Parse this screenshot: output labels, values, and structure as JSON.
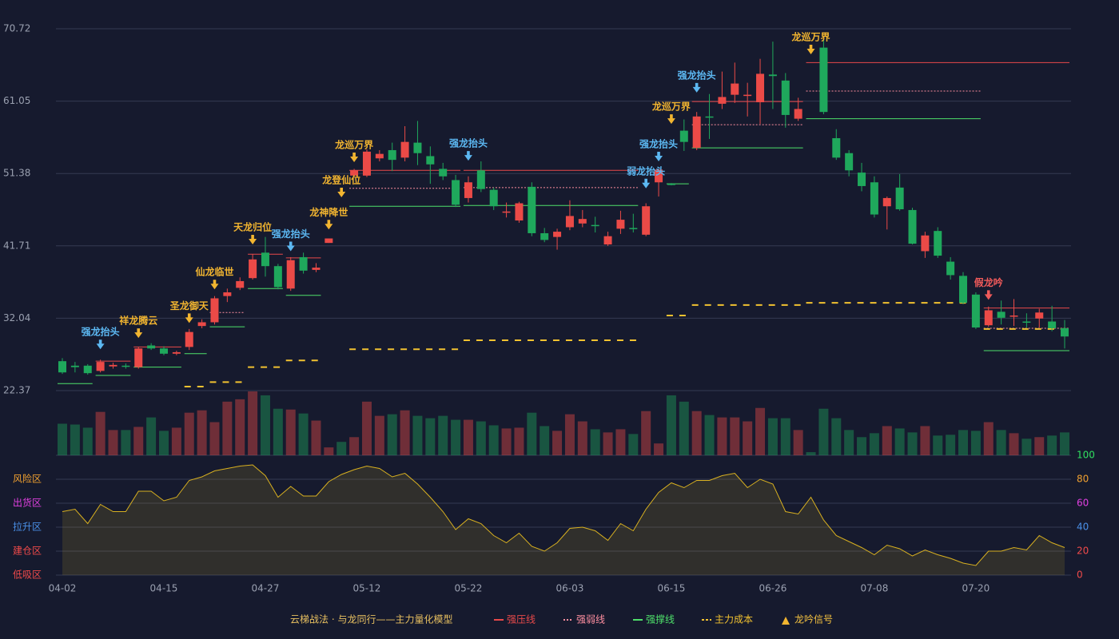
{
  "chart_data": {
    "type": "candlestick",
    "categories": [
      "04-02",
      null,
      null,
      null,
      null,
      null,
      null,
      null,
      "04-15",
      null,
      null,
      null,
      null,
      null,
      null,
      null,
      "04-27",
      null,
      null,
      null,
      null,
      null,
      null,
      null,
      "05-12",
      null,
      null,
      null,
      null,
      null,
      null,
      null,
      "05-22",
      null,
      null,
      null,
      null,
      null,
      null,
      null,
      "06-03",
      null,
      null,
      null,
      null,
      null,
      null,
      null,
      "06-15",
      null,
      null,
      null,
      null,
      null,
      null,
      null,
      "06-26",
      null,
      null,
      null,
      null,
      null,
      null,
      null,
      "07-08",
      null,
      null,
      null,
      null,
      null,
      null,
      null,
      "07-20",
      null,
      null,
      null,
      null,
      null,
      null,
      null
    ],
    "open": [
      26.3,
      25.7,
      25.7,
      25.0,
      25.6,
      25.7,
      25.5,
      28.4,
      28.0,
      27.3,
      28.2,
      31.0,
      31.5,
      35.0,
      36.1,
      37.4,
      40.8,
      39.0,
      36.0,
      40.2,
      38.5,
      42.1,
      null,
      51.1,
      51.1,
      53.4,
      54.5,
      53.5,
      55.5,
      53.7,
      52.0,
      50.5,
      48.1,
      51.8,
      49.2,
      46.2,
      45.1,
      49.6,
      43.4,
      42.9,
      44.2,
      44.7,
      44.5,
      41.9,
      44.0,
      44.1,
      43.2,
      50.2,
      50.0,
      57.1,
      54.8,
      59.0,
      60.7,
      61.9,
      61.8,
      60.9,
      64.6,
      63.8,
      58.7,
      null,
      68.2,
      56.1,
      54.1,
      51.5,
      50.2,
      47.0,
      49.5,
      46.5,
      41.0,
      43.7,
      39.6,
      37.7,
      35.2,
      31.1,
      32.9,
      32.4,
      31.6,
      32.0,
      31.6,
      30.7
    ],
    "high": [
      26.7,
      26.2,
      25.9,
      26.5,
      26.1,
      26.0,
      28.2,
      28.7,
      28.3,
      27.7,
      30.6,
      31.9,
      35.0,
      36.0,
      37.5,
      40.6,
      42.9,
      39.3,
      40.2,
      40.8,
      39.4,
      42.7,
      null,
      52.0,
      54.6,
      54.5,
      55.5,
      57.7,
      58.4,
      55.0,
      52.8,
      51.2,
      51.0,
      53.0,
      49.5,
      47.5,
      47.6,
      50.2,
      44.1,
      44.0,
      47.8,
      46.5,
      45.6,
      43.6,
      46.4,
      46.0,
      47.4,
      52.0,
      50.1,
      58.6,
      59.6,
      62.0,
      65.0,
      66.2,
      63.5,
      66.7,
      69.0,
      64.8,
      61.5,
      null,
      69.3,
      57.3,
      54.5,
      52.8,
      51.0,
      48.3,
      51.3,
      46.8,
      43.6,
      44.2,
      40.2,
      38.2,
      35.5,
      33.6,
      34.4,
      34.6,
      32.7,
      33.3,
      33.7,
      31.8
    ],
    "low": [
      24.6,
      24.8,
      24.5,
      24.8,
      25.3,
      25.3,
      25.3,
      27.8,
      27.1,
      27.1,
      27.8,
      30.7,
      31.2,
      34.2,
      35.8,
      37.2,
      37.6,
      35.9,
      35.7,
      38.0,
      38.2,
      42.1,
      null,
      50.9,
      50.9,
      53.0,
      51.7,
      53.0,
      52.5,
      50.0,
      50.5,
      46.9,
      47.5,
      48.9,
      46.5,
      45.5,
      44.8,
      43.0,
      42.2,
      41.2,
      43.8,
      44.2,
      43.5,
      41.7,
      43.3,
      43.5,
      43.0,
      48.3,
      49.8,
      54.4,
      54.5,
      56.0,
      60.0,
      60.8,
      59.0,
      58.0,
      60.0,
      57.5,
      58.4,
      null,
      59.3,
      53.2,
      51.0,
      49.0,
      45.5,
      43.9,
      46.4,
      41.9,
      40.1,
      40.1,
      37.2,
      33.9,
      30.6,
      30.9,
      31.2,
      31.0,
      30.8,
      30.8,
      30.3,
      28.0
    ],
    "close": [
      24.8,
      25.5,
      24.7,
      26.2,
      25.8,
      25.6,
      28.0,
      28.0,
      27.3,
      27.5,
      30.2,
      31.5,
      34.7,
      35.5,
      37.0,
      39.9,
      39.0,
      36.2,
      39.8,
      38.4,
      38.8,
      42.7,
      null,
      51.8,
      54.3,
      54.0,
      53.2,
      55.6,
      54.1,
      52.6,
      51.0,
      47.2,
      50.2,
      49.3,
      47.0,
      46.3,
      47.4,
      43.4,
      42.5,
      43.6,
      45.7,
      45.3,
      44.4,
      43.0,
      45.2,
      44.0,
      47.0,
      51.9,
      49.9,
      55.6,
      59.0,
      58.9,
      61.6,
      63.4,
      61.9,
      64.7,
      64.4,
      59.2,
      60.0,
      null,
      59.6,
      53.5,
      51.8,
      49.7,
      45.9,
      48.1,
      46.6,
      42.0,
      43.1,
      40.4,
      37.8,
      34.1,
      30.8,
      33.1,
      32.1,
      32.4,
      31.5,
      32.8,
      30.7,
      29.6
    ],
    "volume": [
      40,
      39,
      35,
      55,
      32,
      32,
      36,
      48,
      31,
      35,
      54,
      57,
      42,
      68,
      71,
      81,
      76,
      59,
      58,
      53,
      44,
      10,
      17,
      23,
      68,
      50,
      52,
      57,
      50,
      47,
      50,
      45,
      45,
      43,
      38,
      34,
      35,
      54,
      37,
      31,
      52,
      43,
      33,
      29,
      33,
      27,
      56,
      15,
      76,
      68,
      56,
      51,
      48,
      48,
      43,
      60,
      47,
      47,
      32,
      4,
      59,
      47,
      32,
      23,
      28,
      37,
      34,
      29,
      37,
      25,
      26,
      32,
      31,
      42,
      32,
      28,
      21,
      23,
      25,
      29
    ],
    "up_color": "#eb4a47",
    "down_color": "#1fa85c",
    "ylim": [
      22.37,
      70.72
    ],
    "yticks": [
      22.37,
      32.04,
      41.71,
      51.38,
      61.05,
      70.72
    ],
    "grid": true,
    "levels": [
      {
        "kind": "pressure",
        "from": 3,
        "to": 5,
        "value": 26.3
      },
      {
        "kind": "pressure",
        "from": 6,
        "to": 9,
        "value": 28.2
      },
      {
        "kind": "pressure",
        "from": 15,
        "to": 17,
        "value": 40.6
      },
      {
        "kind": "pressure",
        "from": 18,
        "to": 20,
        "value": 40.1
      },
      {
        "kind": "pressure",
        "from": 23,
        "to": 31,
        "value": 51.8
      },
      {
        "kind": "pressure",
        "from": 32,
        "to": 45,
        "value": 51.8
      },
      {
        "kind": "pressure",
        "from": 50,
        "to": 58,
        "value": 61.0
      },
      {
        "kind": "pressure",
        "from": 59,
        "to": 79,
        "value": 66.2
      },
      {
        "kind": "pressure",
        "from": 73,
        "to": 79,
        "value": 33.4
      },
      {
        "kind": "weak",
        "from": 12,
        "to": 14,
        "value": 32.8
      },
      {
        "kind": "weak",
        "from": 23,
        "to": 31,
        "value": 49.4
      },
      {
        "kind": "weak",
        "from": 32,
        "to": 45,
        "value": 49.5
      },
      {
        "kind": "weak",
        "from": 50,
        "to": 58,
        "value": 57.9
      },
      {
        "kind": "weak",
        "from": 59,
        "to": 72,
        "value": 62.4
      },
      {
        "kind": "weak",
        "from": 73,
        "to": 79,
        "value": 30.7
      },
      {
        "kind": "support",
        "from": 0,
        "to": 2,
        "value": 23.3
      },
      {
        "kind": "support",
        "from": 3,
        "to": 5,
        "value": 24.4
      },
      {
        "kind": "support",
        "from": 6,
        "to": 9,
        "value": 25.5
      },
      {
        "kind": "support",
        "from": 10,
        "to": 11,
        "value": 27.3
      },
      {
        "kind": "support",
        "from": 12,
        "to": 14,
        "value": 30.9
      },
      {
        "kind": "support",
        "from": 15,
        "to": 17,
        "value": 36.0
      },
      {
        "kind": "support",
        "from": 18,
        "to": 20,
        "value": 35.1
      },
      {
        "kind": "support",
        "from": 23,
        "to": 31,
        "value": 47.0
      },
      {
        "kind": "support",
        "from": 32,
        "to": 45,
        "value": 47.1
      },
      {
        "kind": "support",
        "from": 48,
        "to": 49,
        "value": 50.0
      },
      {
        "kind": "support",
        "from": 50,
        "to": 58,
        "value": 54.8
      },
      {
        "kind": "support",
        "from": 59,
        "to": 72,
        "value": 58.7
      },
      {
        "kind": "support",
        "from": 73,
        "to": 79,
        "value": 27.7
      },
      {
        "kind": "cost",
        "from": 10,
        "to": 11,
        "value": 22.9
      },
      {
        "kind": "cost",
        "from": 12,
        "to": 14,
        "value": 23.5
      },
      {
        "kind": "cost",
        "from": 15,
        "to": 17,
        "value": 25.5
      },
      {
        "kind": "cost",
        "from": 18,
        "to": 20,
        "value": 26.4
      },
      {
        "kind": "cost",
        "from": 23,
        "to": 31,
        "value": 27.9
      },
      {
        "kind": "cost",
        "from": 32,
        "to": 45,
        "value": 29.1
      },
      {
        "kind": "cost",
        "from": 48,
        "to": 49,
        "value": 32.4
      },
      {
        "kind": "cost",
        "from": 50,
        "to": 58,
        "value": 33.8
      },
      {
        "kind": "cost",
        "from": 59,
        "to": 72,
        "value": 34.1
      },
      {
        "kind": "cost",
        "from": 73,
        "to": 79,
        "value": 30.6
      }
    ],
    "level_styles": {
      "pressure": {
        "color": "#e8494a",
        "dash": ""
      },
      "weak": {
        "color": "#ff8fa0",
        "dash": "2,2"
      },
      "support": {
        "color": "#4ee06a",
        "dash": ""
      },
      "cost": {
        "color": "#f2c230",
        "dash": "8,8"
      }
    },
    "signals": [
      {
        "label": "强龙抬头",
        "index": 3,
        "value": 27.9,
        "color": "#5cb8f2"
      },
      {
        "label": "祥龙腾云",
        "index": 6,
        "value": 29.4,
        "color": "#f2b530"
      },
      {
        "label": "圣龙御天",
        "index": 10,
        "value": 31.4,
        "color": "#f2b530"
      },
      {
        "label": "仙龙临世",
        "index": 12,
        "value": 35.9,
        "color": "#f2b530"
      },
      {
        "label": "天龙归位",
        "index": 15,
        "value": 41.9,
        "color": "#f2b530"
      },
      {
        "label": "强龙抬头",
        "index": 18,
        "value": 41.0,
        "color": "#5cb8f2"
      },
      {
        "label": "龙神降世",
        "index": 21,
        "value": 43.9,
        "color": "#f2b530"
      },
      {
        "label": "龙登仙位",
        "index": 22,
        "value": 48.2,
        "color": "#f2b530"
      },
      {
        "label": "龙巡万界",
        "index": 23,
        "value": 52.9,
        "color": "#f2b530"
      },
      {
        "label": "强龙抬头",
        "index": 32,
        "value": 53.1,
        "color": "#5cb8f2"
      },
      {
        "label": "弱龙抬头",
        "index": 46,
        "value": 49.4,
        "color": "#5cb8f2"
      },
      {
        "label": "强龙抬头",
        "index": 47,
        "value": 53.0,
        "color": "#5cb8f2"
      },
      {
        "label": "龙巡万界",
        "index": 48,
        "value": 58.0,
        "color": "#f2b530"
      },
      {
        "label": "强龙抬头",
        "index": 50,
        "value": 62.2,
        "color": "#5cb8f2"
      },
      {
        "label": "龙巡万界",
        "index": 59,
        "value": 67.3,
        "color": "#f2b530"
      },
      {
        "label": "假龙吟",
        "index": 73,
        "value": 34.5,
        "color": "#f05a5a"
      }
    ],
    "indicator": {
      "values": [
        53,
        55,
        43,
        59,
        53,
        53,
        70,
        70,
        62,
        65,
        79,
        82,
        87,
        89,
        91,
        92,
        83,
        65,
        74,
        66,
        66,
        78,
        84,
        88,
        91,
        89,
        82,
        85,
        76,
        65,
        53,
        38,
        47,
        43,
        33,
        27,
        35,
        24,
        20,
        27,
        39,
        40,
        37,
        29,
        43,
        37,
        55,
        69,
        77,
        73,
        79,
        79,
        83,
        85,
        73,
        80,
        76,
        53,
        51,
        65,
        46,
        33,
        28,
        23,
        17,
        25,
        22,
        16,
        21,
        17,
        14,
        10,
        8,
        20,
        20,
        23,
        21,
        33,
        27,
        23
      ],
      "color": "#d8b020",
      "ylim": [
        0,
        100
      ],
      "yticks": [
        0,
        20,
        40,
        60,
        80,
        100
      ],
      "ytick_colors": [
        "#f04a4a",
        "#f04a4a",
        "#4a90e8",
        "#e040e0",
        "#f0a030",
        "#30e060"
      ],
      "zones": [
        {
          "label": "风险区",
          "value": 80,
          "color": "#f0a030"
        },
        {
          "label": "出货区",
          "value": 60,
          "color": "#e040e0"
        },
        {
          "label": "拉升区",
          "value": 40,
          "color": "#4a90e8"
        },
        {
          "label": "建仓区",
          "value": 20,
          "color": "#f04a4a"
        },
        {
          "label": "低吸区",
          "value": 0,
          "color": "#f04a4a"
        }
      ]
    },
    "legend": {
      "title": "云梯战法 · 与龙同行——主力量化模型",
      "items": [
        {
          "label": "强压线",
          "kind": "pressure"
        },
        {
          "label": "强弱线",
          "kind": "weak"
        },
        {
          "label": "强撑线",
          "kind": "support"
        },
        {
          "label": "主力成本",
          "kind": "cost"
        },
        {
          "label": "龙吟信号",
          "kind": "signal"
        }
      ]
    }
  }
}
